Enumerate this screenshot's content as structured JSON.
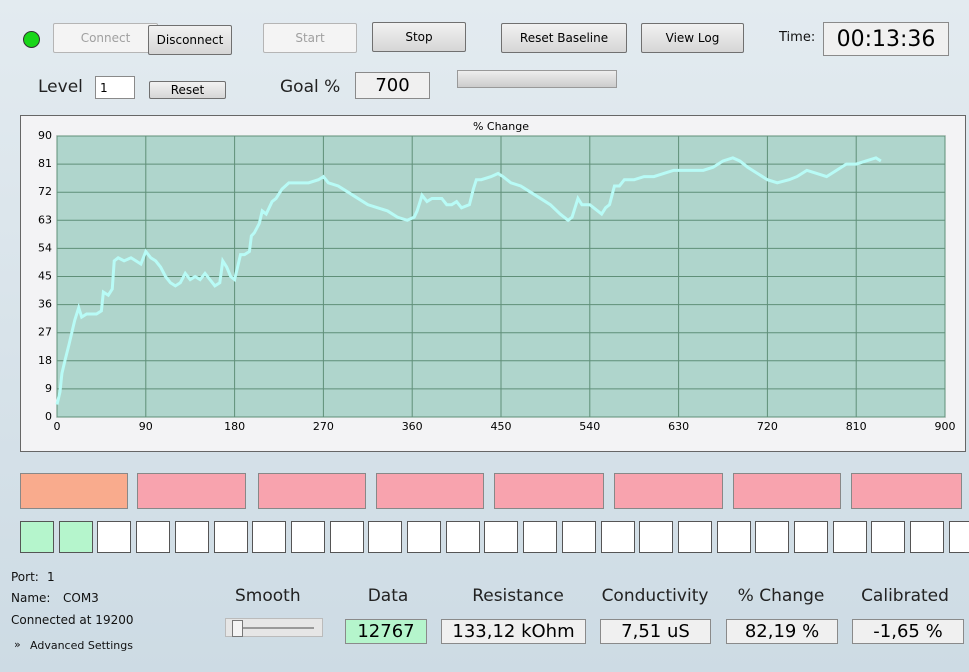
{
  "buttons": [
    "Connect",
    "Disconnect",
    "Start",
    "Stop",
    "Reset Baseline",
    "View Log"
  ],
  "time": {
    "label": "Time:",
    "value": "00:13:36"
  },
  "level": {
    "label": "Level",
    "value": "1",
    "button": "Reset"
  },
  "goal": {
    "label": "Goal %",
    "value": "700"
  },
  "chart_data": {
    "type": "line",
    "title": "% Change",
    "x": [
      0,
      3,
      5,
      8,
      12,
      15,
      18,
      22,
      25,
      30,
      35,
      40,
      45,
      47,
      52,
      56,
      58,
      62,
      68,
      75,
      80,
      85,
      90,
      95,
      100,
      105,
      110,
      115,
      120,
      125,
      130,
      135,
      140,
      145,
      150,
      155,
      160,
      165,
      168,
      172,
      176,
      180,
      183,
      186,
      190,
      195,
      197,
      200,
      205,
      208,
      212,
      218,
      222,
      228,
      235,
      245,
      255,
      265,
      270,
      275,
      285,
      295,
      305,
      315,
      325,
      335,
      345,
      355,
      362,
      365,
      370,
      375,
      380,
      390,
      395,
      400,
      405,
      410,
      418,
      422,
      425,
      430,
      440,
      447,
      452,
      460,
      470,
      480,
      490,
      500,
      510,
      518,
      522,
      528,
      532,
      540,
      548,
      552,
      556,
      560,
      565,
      570,
      575,
      585,
      595,
      605,
      615,
      625,
      640,
      655,
      665,
      675,
      685,
      692,
      700,
      710,
      720,
      730,
      742,
      750,
      760,
      770,
      780,
      790,
      800,
      810,
      820,
      830,
      835
    ],
    "series": [
      {
        "name": "% Change",
        "color": "#b8fbf6",
        "values": [
          4,
          8,
          14,
          18,
          23,
          27,
          31,
          35,
          32,
          33,
          33,
          33,
          34,
          40,
          39,
          41,
          50,
          51,
          50,
          51,
          50,
          49,
          53,
          51,
          50,
          48,
          45,
          43,
          42,
          43,
          46,
          44,
          45,
          44,
          46,
          44,
          42,
          43,
          50,
          48,
          45,
          44,
          48,
          52,
          52,
          53,
          58,
          59,
          62,
          66,
          65,
          69,
          70,
          73,
          75,
          75,
          75,
          76,
          77,
          75,
          74,
          72,
          70,
          68,
          67,
          66,
          64,
          63,
          64,
          66,
          71,
          69,
          70,
          70,
          68,
          68,
          69,
          67,
          68,
          73,
          76,
          76,
          77,
          78,
          77,
          75,
          74,
          72,
          70,
          68,
          65,
          63,
          64,
          70,
          68,
          68,
          66,
          65,
          67,
          68,
          74,
          74,
          76,
          76,
          77,
          77,
          78,
          79,
          79,
          79,
          80,
          82,
          83,
          82,
          80,
          78,
          76,
          75,
          76,
          77,
          79,
          78,
          77,
          79,
          81,
          81,
          82,
          83,
          82
        ]
      }
    ],
    "xlim": [
      0,
      900
    ],
    "xticks": [
      0,
      90,
      180,
      270,
      360,
      450,
      540,
      630,
      720,
      810,
      900
    ],
    "ylim": [
      0,
      90
    ],
    "yticks": [
      0,
      9,
      18,
      27,
      36,
      45,
      54,
      63,
      72,
      81,
      90
    ],
    "grid": true
  },
  "smooth": {
    "label": "Smooth"
  },
  "readouts": [
    {
      "label": "Data",
      "value": "12767"
    },
    {
      "label": "Resistance",
      "value": "133,12 kOhm"
    },
    {
      "label": "Conductivity",
      "value": "7,51 uS"
    },
    {
      "label": "% Change",
      "value": "82,19 %"
    },
    {
      "label": "Calibrated",
      "value": "-1,65 %"
    }
  ],
  "port": {
    "port_label": "Port:",
    "port": "1",
    "name_label": "Name:",
    "name": "COM3",
    "status": "Connected at 19200",
    "advanced": "Advanced Settings"
  }
}
